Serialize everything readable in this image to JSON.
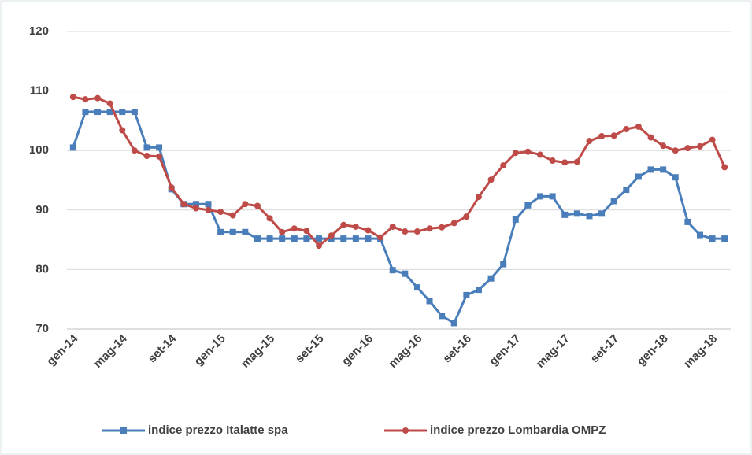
{
  "chart_data": {
    "type": "line",
    "categories": [
      "gen-14",
      null,
      null,
      null,
      "mag-14",
      null,
      null,
      null,
      "set-14",
      null,
      null,
      null,
      "gen-15",
      null,
      null,
      null,
      "mag-15",
      null,
      null,
      null,
      "set-15",
      null,
      null,
      null,
      "gen-16",
      null,
      null,
      null,
      "mag-16",
      null,
      null,
      null,
      "set-16",
      null,
      null,
      null,
      "gen-17",
      null,
      null,
      null,
      "mag-17",
      null,
      null,
      null,
      "set-17",
      null,
      null,
      null,
      "gen-18",
      null,
      null,
      null,
      "mag-18",
      null
    ],
    "series": [
      {
        "name": "indice prezzo Italatte spa",
        "color": "#4a7ebb",
        "marker": "square",
        "values": [
          100.5,
          106.5,
          106.5,
          106.5,
          106.5,
          106.5,
          100.5,
          100.5,
          93.5,
          91,
          91,
          91,
          86.3,
          86.3,
          86.3,
          85.2,
          85.2,
          85.2,
          85.2,
          85.2,
          85.2,
          85.2,
          85.2,
          85.2,
          85.2,
          85.2,
          79.9,
          79.3,
          77,
          74.7,
          72.2,
          71,
          75.7,
          76.6,
          78.5,
          80.9,
          88.4,
          90.8,
          92.3,
          92.3,
          89.2,
          89.4,
          89,
          89.4,
          91.5,
          93.4,
          95.6,
          96.8,
          96.8,
          95.5,
          88,
          85.8,
          85.2,
          85.2
        ]
      },
      {
        "name": "indice prezzo Lombardia OMPZ",
        "color": "#be4b48",
        "marker": "circle",
        "values": [
          109,
          108.6,
          108.8,
          107.9,
          103.4,
          100,
          99.1,
          99,
          93.8,
          91,
          90.3,
          90,
          89.7,
          89.1,
          91,
          90.7,
          88.6,
          86.3,
          86.9,
          86.5,
          84,
          85.7,
          87.5,
          87.2,
          86.6,
          85.4,
          87.2,
          86.4,
          86.4,
          86.9,
          87.1,
          87.8,
          88.9,
          92.2,
          95.1,
          97.5,
          99.6,
          99.8,
          99.3,
          98.3,
          98,
          98.1,
          101.6,
          102.4,
          102.5,
          103.6,
          104,
          102.2,
          100.8,
          100,
          100.4,
          100.7,
          101.8,
          97.2
        ]
      }
    ],
    "ylim": [
      70,
      120
    ],
    "yticks": [
      70,
      80,
      90,
      100,
      110,
      120
    ],
    "grid": true,
    "legend": "bottom"
  }
}
